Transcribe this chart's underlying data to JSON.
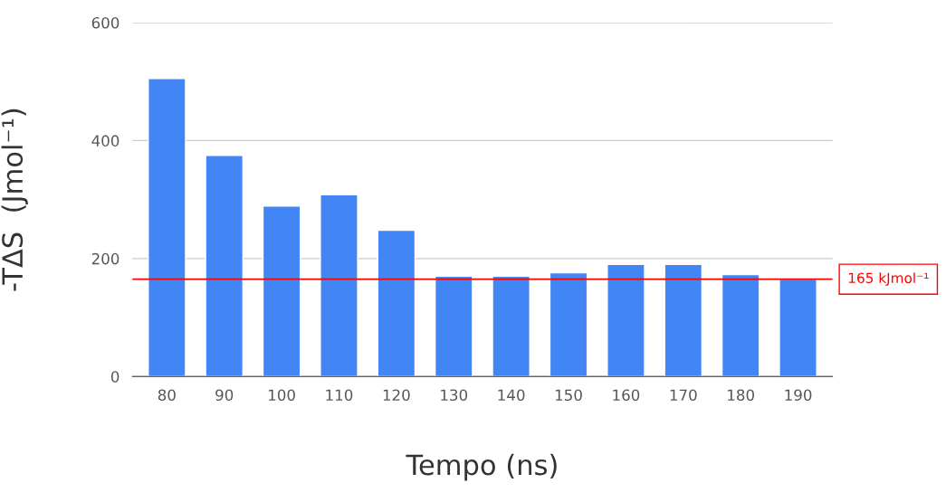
{
  "chart_data": {
    "type": "bar",
    "xlabel": "Tempo (ns)",
    "ylabel": "-TΔS  (Jmol⁻¹)",
    "categories": [
      "80",
      "90",
      "100",
      "110",
      "120",
      "130",
      "140",
      "150",
      "160",
      "170",
      "180",
      "190"
    ],
    "values": [
      505,
      375,
      289,
      308,
      248,
      170,
      170,
      176,
      190,
      190,
      173,
      165
    ],
    "color": "#4285f4",
    "ylim": [
      0,
      600
    ],
    "yticks": [
      0,
      200,
      400,
      600
    ],
    "grid": "y",
    "ref_lines": [
      {
        "axis": "y",
        "value": 165,
        "label": "165 kJmol⁻¹",
        "color": "#ff0000"
      }
    ]
  }
}
